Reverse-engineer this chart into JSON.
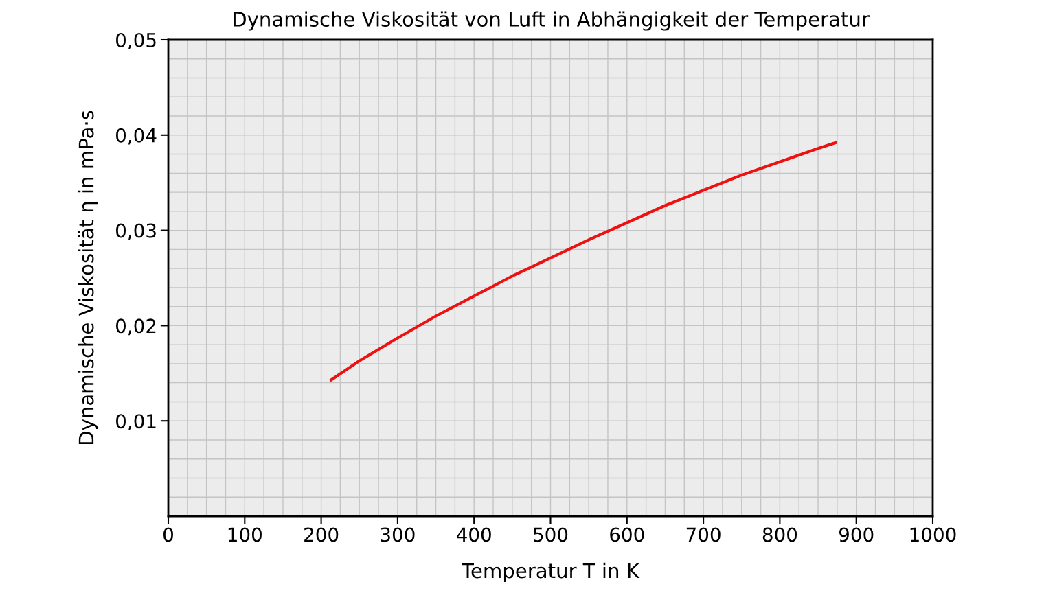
{
  "chart_data": {
    "type": "line",
    "title": "Dynamische Viskosität von Luft in Abhängigkeit der Temperatur",
    "xlabel": "Temperatur T in K",
    "ylabel": "Dynamische Viskosität η in mPa·s",
    "x": [
      213,
      250,
      300,
      350,
      400,
      450,
      500,
      550,
      600,
      650,
      700,
      750,
      800,
      850,
      873
    ],
    "series": [
      {
        "color": "#ee1111",
        "values": [
          0.0143,
          0.0163,
          0.0187,
          0.021,
          0.0231,
          0.0252,
          0.0271,
          0.029,
          0.0308,
          0.0326,
          0.0342,
          0.0358,
          0.0372,
          0.0386,
          0.0392
        ]
      }
    ],
    "xlim": [
      0,
      1000
    ],
    "xticks": [
      0,
      100,
      200,
      300,
      400,
      500,
      600,
      700,
      800,
      900,
      1000
    ],
    "ylim": [
      0,
      0.05
    ],
    "yticks": [
      {
        "value": 0.01,
        "label": "0,01"
      },
      {
        "value": 0.02,
        "label": "0,02"
      },
      {
        "value": 0.03,
        "label": "0,03"
      },
      {
        "value": 0.04,
        "label": "0,04"
      },
      {
        "value": 0.05,
        "label": "0,05"
      }
    ],
    "grid": true,
    "marker": "none",
    "line_style": "solid"
  }
}
